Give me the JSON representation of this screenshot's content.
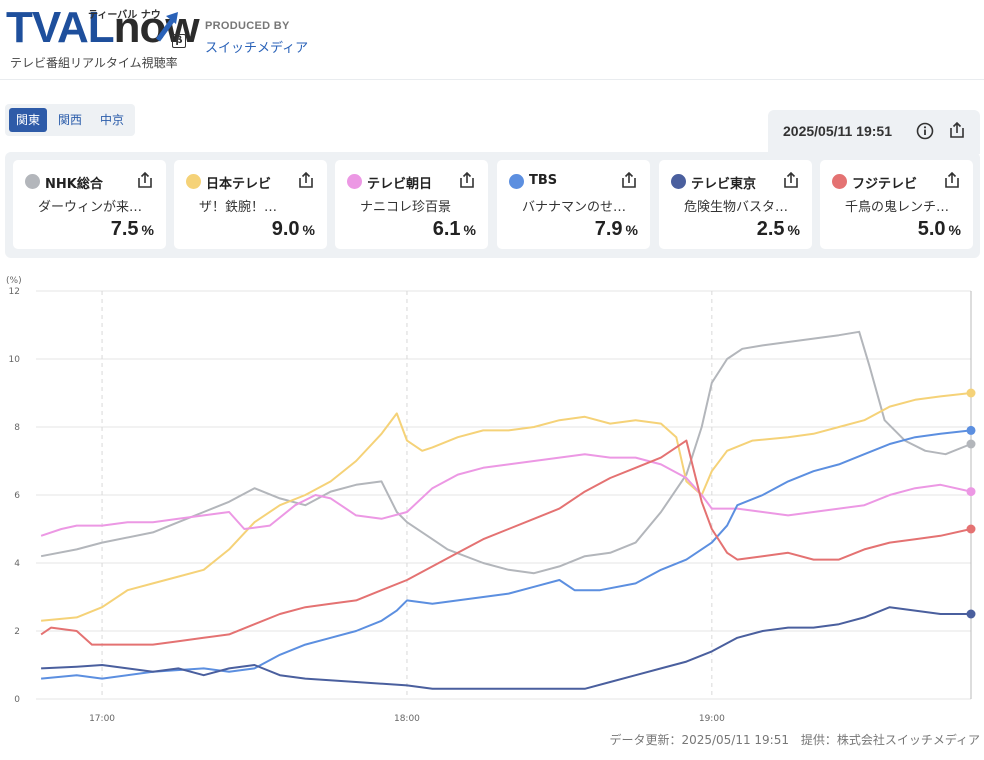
{
  "header": {
    "logo_tval": "TVAL",
    "logo_now": "now",
    "logo_ruby": "ティーバル ナウ",
    "logo_beta": "β",
    "logo_subtitle": "テレビ番組リアルタイム視聴率",
    "produced_by": "PRODUCED BY",
    "producer": "スイッチメディア"
  },
  "regions": [
    {
      "label": "関東",
      "active": true
    },
    {
      "label": "関西",
      "active": false
    },
    {
      "label": "中京",
      "active": false
    }
  ],
  "datetime": "2025/05/11 19:51",
  "icons": {
    "info": "info-icon",
    "share": "share-icon"
  },
  "stations": [
    {
      "name": "NHK総合",
      "program": "ダーウィンが来…",
      "rating": "7.5",
      "unit": "%",
      "color": "#b3b6bb"
    },
    {
      "name": "日本テレビ",
      "program": "ザ！鉄腕！…",
      "rating": "9.0",
      "unit": "%",
      "color": "#f5d278"
    },
    {
      "name": "テレビ朝日",
      "program": "ナニコレ珍百景",
      "rating": "6.1",
      "unit": "%",
      "color": "#ec98e4"
    },
    {
      "name": "TBS",
      "program": "バナナマンのせ…",
      "rating": "7.9",
      "unit": "%",
      "color": "#5c8fe0"
    },
    {
      "name": "テレビ東京",
      "program": "危険生物バスタ…",
      "rating": "2.5",
      "unit": "%",
      "color": "#4a5f9e"
    },
    {
      "name": "フジテレビ",
      "program": "千鳥の鬼レンチ…",
      "rating": "5.0",
      "unit": "%",
      "color": "#e47272"
    }
  ],
  "footer": {
    "updated": "データ更新：2025/05/11 19:51",
    "provider": "提供：株式会社スイッチメディア"
  },
  "chart_data": {
    "type": "line",
    "ylabel": "(%)",
    "ylim": [
      0,
      12
    ],
    "yticks": [
      0,
      2,
      4,
      6,
      8,
      10,
      12
    ],
    "xlim": [
      "16:47",
      "19:51"
    ],
    "xticks": [
      "17:00",
      "18:00",
      "19:00"
    ],
    "grid": true,
    "legend": "none",
    "series": [
      {
        "name": "NHK総合",
        "color": "#b3b6bb",
        "points": [
          [
            "16:48",
            4.2
          ],
          [
            "16:55",
            4.4
          ],
          [
            "17:00",
            4.6
          ],
          [
            "17:10",
            4.9
          ],
          [
            "17:15",
            5.2
          ],
          [
            "17:20",
            5.5
          ],
          [
            "17:25",
            5.8
          ],
          [
            "17:30",
            6.2
          ],
          [
            "17:35",
            5.9
          ],
          [
            "17:40",
            5.7
          ],
          [
            "17:45",
            6.1
          ],
          [
            "17:50",
            6.3
          ],
          [
            "17:55",
            6.4
          ],
          [
            "17:58",
            5.5
          ],
          [
            "18:00",
            5.2
          ],
          [
            "18:05",
            4.7
          ],
          [
            "18:08",
            4.4
          ],
          [
            "18:15",
            4.0
          ],
          [
            "18:20",
            3.8
          ],
          [
            "18:25",
            3.7
          ],
          [
            "18:30",
            3.9
          ],
          [
            "18:35",
            4.2
          ],
          [
            "18:40",
            4.3
          ],
          [
            "18:45",
            4.6
          ],
          [
            "18:50",
            5.5
          ],
          [
            "18:55",
            6.6
          ],
          [
            "18:58",
            8.0
          ],
          [
            "19:00",
            9.3
          ],
          [
            "19:03",
            10.0
          ],
          [
            "19:06",
            10.3
          ],
          [
            "19:10",
            10.4
          ],
          [
            "19:15",
            10.5
          ],
          [
            "19:20",
            10.6
          ],
          [
            "19:25",
            10.7
          ],
          [
            "19:29",
            10.8
          ],
          [
            "19:31",
            9.8
          ],
          [
            "19:34",
            8.2
          ],
          [
            "19:38",
            7.6
          ],
          [
            "19:42",
            7.3
          ],
          [
            "19:46",
            7.2
          ],
          [
            "19:51",
            7.5
          ]
        ]
      },
      {
        "name": "日本テレビ",
        "color": "#f5d278",
        "points": [
          [
            "16:48",
            2.3
          ],
          [
            "16:55",
            2.4
          ],
          [
            "17:00",
            2.7
          ],
          [
            "17:05",
            3.2
          ],
          [
            "17:10",
            3.4
          ],
          [
            "17:15",
            3.6
          ],
          [
            "17:20",
            3.8
          ],
          [
            "17:25",
            4.4
          ],
          [
            "17:30",
            5.2
          ],
          [
            "17:35",
            5.7
          ],
          [
            "17:40",
            6.0
          ],
          [
            "17:45",
            6.4
          ],
          [
            "17:50",
            7.0
          ],
          [
            "17:55",
            7.8
          ],
          [
            "17:58",
            8.4
          ],
          [
            "18:00",
            7.6
          ],
          [
            "18:03",
            7.3
          ],
          [
            "18:05",
            7.4
          ],
          [
            "18:10",
            7.7
          ],
          [
            "18:15",
            7.9
          ],
          [
            "18:20",
            7.9
          ],
          [
            "18:25",
            8.0
          ],
          [
            "18:30",
            8.2
          ],
          [
            "18:35",
            8.3
          ],
          [
            "18:40",
            8.1
          ],
          [
            "18:45",
            8.2
          ],
          [
            "18:50",
            8.1
          ],
          [
            "18:53",
            7.7
          ],
          [
            "18:55",
            6.4
          ],
          [
            "18:58",
            6.0
          ],
          [
            "19:00",
            6.7
          ],
          [
            "19:03",
            7.3
          ],
          [
            "19:08",
            7.6
          ],
          [
            "19:15",
            7.7
          ],
          [
            "19:20",
            7.8
          ],
          [
            "19:25",
            8.0
          ],
          [
            "19:30",
            8.2
          ],
          [
            "19:35",
            8.6
          ],
          [
            "19:40",
            8.8
          ],
          [
            "19:45",
            8.9
          ],
          [
            "19:51",
            9.0
          ]
        ]
      },
      {
        "name": "テレビ朝日",
        "color": "#ec98e4",
        "points": [
          [
            "16:48",
            4.8
          ],
          [
            "16:52",
            5.0
          ],
          [
            "16:55",
            5.1
          ],
          [
            "17:00",
            5.1
          ],
          [
            "17:05",
            5.2
          ],
          [
            "17:10",
            5.2
          ],
          [
            "17:15",
            5.3
          ],
          [
            "17:20",
            5.4
          ],
          [
            "17:25",
            5.5
          ],
          [
            "17:28",
            5.0
          ],
          [
            "17:33",
            5.1
          ],
          [
            "17:38",
            5.7
          ],
          [
            "17:42",
            6.0
          ],
          [
            "17:45",
            5.9
          ],
          [
            "17:50",
            5.4
          ],
          [
            "17:55",
            5.3
          ],
          [
            "18:00",
            5.5
          ],
          [
            "18:05",
            6.2
          ],
          [
            "18:10",
            6.6
          ],
          [
            "18:15",
            6.8
          ],
          [
            "18:20",
            6.9
          ],
          [
            "18:25",
            7.0
          ],
          [
            "18:30",
            7.1
          ],
          [
            "18:35",
            7.2
          ],
          [
            "18:40",
            7.1
          ],
          [
            "18:45",
            7.1
          ],
          [
            "18:50",
            6.9
          ],
          [
            "18:55",
            6.5
          ],
          [
            "18:58",
            6.0
          ],
          [
            "19:00",
            5.6
          ],
          [
            "19:05",
            5.6
          ],
          [
            "19:10",
            5.5
          ],
          [
            "19:15",
            5.4
          ],
          [
            "19:20",
            5.5
          ],
          [
            "19:25",
            5.6
          ],
          [
            "19:30",
            5.7
          ],
          [
            "19:35",
            6.0
          ],
          [
            "19:40",
            6.2
          ],
          [
            "19:45",
            6.3
          ],
          [
            "19:51",
            6.1
          ]
        ]
      },
      {
        "name": "TBS",
        "color": "#5c8fe0",
        "points": [
          [
            "16:48",
            0.6
          ],
          [
            "16:55",
            0.7
          ],
          [
            "17:00",
            0.6
          ],
          [
            "17:10",
            0.8
          ],
          [
            "17:20",
            0.9
          ],
          [
            "17:25",
            0.8
          ],
          [
            "17:30",
            0.9
          ],
          [
            "17:35",
            1.3
          ],
          [
            "17:40",
            1.6
          ],
          [
            "17:45",
            1.8
          ],
          [
            "17:50",
            2.0
          ],
          [
            "17:55",
            2.3
          ],
          [
            "17:58",
            2.6
          ],
          [
            "18:00",
            2.9
          ],
          [
            "18:05",
            2.8
          ],
          [
            "18:10",
            2.9
          ],
          [
            "18:15",
            3.0
          ],
          [
            "18:20",
            3.1
          ],
          [
            "18:25",
            3.3
          ],
          [
            "18:30",
            3.5
          ],
          [
            "18:33",
            3.2
          ],
          [
            "18:38",
            3.2
          ],
          [
            "18:45",
            3.4
          ],
          [
            "18:50",
            3.8
          ],
          [
            "18:55",
            4.1
          ],
          [
            "19:00",
            4.6
          ],
          [
            "19:03",
            5.1
          ],
          [
            "19:05",
            5.7
          ],
          [
            "19:10",
            6.0
          ],
          [
            "19:15",
            6.4
          ],
          [
            "19:20",
            6.7
          ],
          [
            "19:25",
            6.9
          ],
          [
            "19:30",
            7.2
          ],
          [
            "19:35",
            7.5
          ],
          [
            "19:40",
            7.7
          ],
          [
            "19:45",
            7.8
          ],
          [
            "19:51",
            7.9
          ]
        ]
      },
      {
        "name": "テレビ東京",
        "color": "#4a5f9e",
        "points": [
          [
            "16:48",
            0.9
          ],
          [
            "16:55",
            0.95
          ],
          [
            "17:00",
            1.0
          ],
          [
            "17:05",
            0.9
          ],
          [
            "17:10",
            0.8
          ],
          [
            "17:15",
            0.9
          ],
          [
            "17:20",
            0.7
          ],
          [
            "17:25",
            0.9
          ],
          [
            "17:30",
            1.0
          ],
          [
            "17:35",
            0.7
          ],
          [
            "17:40",
            0.6
          ],
          [
            "17:50",
            0.5
          ],
          [
            "18:00",
            0.4
          ],
          [
            "18:05",
            0.3
          ],
          [
            "18:10",
            0.3
          ],
          [
            "18:20",
            0.3
          ],
          [
            "18:30",
            0.3
          ],
          [
            "18:35",
            0.3
          ],
          [
            "18:40",
            0.5
          ],
          [
            "18:45",
            0.7
          ],
          [
            "18:50",
            0.9
          ],
          [
            "18:55",
            1.1
          ],
          [
            "19:00",
            1.4
          ],
          [
            "19:05",
            1.8
          ],
          [
            "19:10",
            2.0
          ],
          [
            "19:15",
            2.1
          ],
          [
            "19:20",
            2.1
          ],
          [
            "19:25",
            2.2
          ],
          [
            "19:30",
            2.4
          ],
          [
            "19:35",
            2.7
          ],
          [
            "19:40",
            2.6
          ],
          [
            "19:45",
            2.5
          ],
          [
            "19:51",
            2.5
          ]
        ]
      },
      {
        "name": "フジテレビ",
        "color": "#e47272",
        "points": [
          [
            "16:48",
            1.9
          ],
          [
            "16:50",
            2.1
          ],
          [
            "16:55",
            2.0
          ],
          [
            "16:58",
            1.6
          ],
          [
            "17:00",
            1.6
          ],
          [
            "17:05",
            1.6
          ],
          [
            "17:10",
            1.6
          ],
          [
            "17:15",
            1.7
          ],
          [
            "17:20",
            1.8
          ],
          [
            "17:25",
            1.9
          ],
          [
            "17:30",
            2.2
          ],
          [
            "17:35",
            2.5
          ],
          [
            "17:40",
            2.7
          ],
          [
            "17:45",
            2.8
          ],
          [
            "17:50",
            2.9
          ],
          [
            "17:55",
            3.2
          ],
          [
            "18:00",
            3.5
          ],
          [
            "18:05",
            3.9
          ],
          [
            "18:10",
            4.3
          ],
          [
            "18:15",
            4.7
          ],
          [
            "18:20",
            5.0
          ],
          [
            "18:25",
            5.3
          ],
          [
            "18:30",
            5.6
          ],
          [
            "18:35",
            6.1
          ],
          [
            "18:40",
            6.5
          ],
          [
            "18:45",
            6.8
          ],
          [
            "18:50",
            7.1
          ],
          [
            "18:55",
            7.6
          ],
          [
            "18:58",
            5.8
          ],
          [
            "19:00",
            5.0
          ],
          [
            "19:03",
            4.3
          ],
          [
            "19:05",
            4.1
          ],
          [
            "19:10",
            4.2
          ],
          [
            "19:15",
            4.3
          ],
          [
            "19:20",
            4.1
          ],
          [
            "19:25",
            4.1
          ],
          [
            "19:30",
            4.4
          ],
          [
            "19:35",
            4.6
          ],
          [
            "19:40",
            4.7
          ],
          [
            "19:45",
            4.8
          ],
          [
            "19:51",
            5.0
          ]
        ]
      }
    ]
  }
}
